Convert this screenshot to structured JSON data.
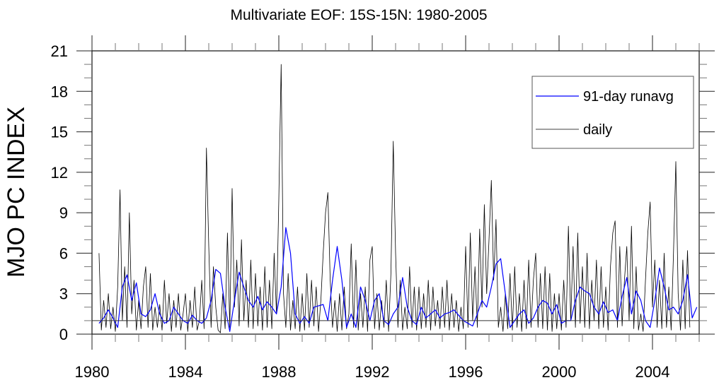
{
  "chart_data": {
    "type": "line",
    "title": "Multivariate EOF: 15S-15N: 1980-2005",
    "xlabel": "",
    "ylabel": "MJO PC INDEX",
    "xlim": [
      1980,
      2006
    ],
    "ylim": [
      0,
      21
    ],
    "xticks": [
      "1980",
      "1984",
      "1988",
      "1992",
      "1996",
      "2000",
      "2004"
    ],
    "xtick_values": [
      1980,
      1984,
      1988,
      1992,
      1996,
      2000,
      2004
    ],
    "yticks": [
      "0",
      "3",
      "6",
      "9",
      "12",
      "15",
      "18",
      "21"
    ],
    "ytick_values": [
      0,
      3,
      6,
      9,
      12,
      15,
      18,
      21
    ],
    "reference_line": 1,
    "grid": false,
    "legend_position": "top-right",
    "series": [
      {
        "name": "91-day runavg",
        "color": "#0000ff",
        "x_start": 1980.3,
        "x_step": 0.2,
        "values": [
          0.8,
          1.2,
          1.8,
          1.2,
          0.5,
          3.5,
          4.4,
          2.5,
          3.8,
          1.5,
          1.3,
          1.8,
          3.0,
          1.5,
          0.8,
          1.0,
          2.0,
          1.5,
          1.0,
          0.8,
          1.4,
          1.0,
          0.8,
          1.2,
          2.5,
          4.8,
          4.5,
          2.0,
          0.2,
          2.5,
          4.6,
          3.5,
          2.5,
          2.0,
          2.8,
          1.8,
          2.4,
          2.0,
          1.5,
          3.5,
          7.9,
          6.0,
          1.5,
          0.8,
          1.3,
          0.8,
          2.0,
          2.1,
          2.2,
          1.0,
          4.0,
          6.5,
          4.0,
          0.5,
          1.5,
          0.5,
          3.5,
          2.5,
          1.0,
          2.5,
          3.0,
          1.0,
          0.7,
          1.5,
          2.0,
          4.2,
          2.0,
          1.0,
          0.7,
          2.0,
          1.2,
          1.5,
          1.8,
          1.2,
          1.5,
          1.6,
          1.8,
          1.4,
          1.0,
          0.8,
          0.6,
          1.5,
          2.5,
          2.0,
          3.5,
          5.2,
          5.6,
          3.0,
          0.5,
          1.0,
          1.5,
          1.8,
          0.8,
          1.2,
          2.0,
          2.5,
          2.3,
          1.5,
          2.2,
          0.8,
          1.0,
          1.0,
          2.5,
          3.5,
          3.2,
          3.0,
          2.0,
          1.5,
          2.4,
          1.6,
          1.8,
          1.0,
          2.8,
          4.2,
          1.5,
          3.2,
          2.5,
          1.0,
          0.5,
          2.5,
          4.9,
          3.5,
          1.8,
          2.0,
          1.5,
          2.5,
          4.4,
          1.2,
          2.0
        ]
      },
      {
        "name": "daily",
        "color": "#000000",
        "x_start": 1980.3,
        "x_step": 0.1,
        "values": [
          6.0,
          0.3,
          2.5,
          0.5,
          3.0,
          0.4,
          2.0,
          0.2,
          3.5,
          10.7,
          1.0,
          5.0,
          0.5,
          9.0,
          1.5,
          4.0,
          0.3,
          2.5,
          0.4,
          3.5,
          5.0,
          0.5,
          4.5,
          0.3,
          2.0,
          0.5,
          2.2,
          0.3,
          4.0,
          0.8,
          3.0,
          0.2,
          2.5,
          0.5,
          3.0,
          0.3,
          1.5,
          3.0,
          0.2,
          2.5,
          0.5,
          3.5,
          0.3,
          1.0,
          4.0,
          0.4,
          13.8,
          6.5,
          0.5,
          5.0,
          2.0,
          0.3,
          0.1,
          3.0,
          0.4,
          7.5,
          0.5,
          10.8,
          2.0,
          5.5,
          0.6,
          7.0,
          1.0,
          4.0,
          0.5,
          5.5,
          0.4,
          4.5,
          0.6,
          3.5,
          0.3,
          5.0,
          0.5,
          4.0,
          0.4,
          6.0,
          1.5,
          10.0,
          20.0,
          3.0,
          0.5,
          4.5,
          0.3,
          2.5,
          0.4,
          3.5,
          0.2,
          3.0,
          0.3,
          4.5,
          0.5,
          4.0,
          0.6,
          3.5,
          0.2,
          2.5,
          6.0,
          9.0,
          10.5,
          4.0,
          0.5,
          2.5,
          0.2,
          3.0,
          0.3,
          3.5,
          0.4,
          1.5,
          6.7,
          0.5,
          5.5,
          0.3,
          3.0,
          0.5,
          3.5,
          0.2,
          5.5,
          6.5,
          0.4,
          3.0,
          0.3,
          2.5,
          0.5,
          4.0,
          0.2,
          4.5,
          14.3,
          6.0,
          0.5,
          4.0,
          0.3,
          2.0,
          0.4,
          5.0,
          0.5,
          3.5,
          0.3,
          3.5,
          0.4,
          3.0,
          0.5,
          4.0,
          0.3,
          3.5,
          0.6,
          2.5,
          0.4,
          3.5,
          0.5,
          4.0,
          0.3,
          3.0,
          0.5,
          2.5,
          0.2,
          2.0,
          0.4,
          6.5,
          0.5,
          7.5,
          1.0,
          5.0,
          0.5,
          7.8,
          2.0,
          9.6,
          3.0,
          7.0,
          11.4,
          4.0,
          8.5,
          0.5,
          2.0,
          0.2,
          3.0,
          0.4,
          4.5,
          0.3,
          5.0,
          0.5,
          3.0,
          0.2,
          4.0,
          0.4,
          5.5,
          0.5,
          4.0,
          6.0,
          0.5,
          4.5,
          0.4,
          5.0,
          0.3,
          4.5,
          0.2,
          3.0,
          0.4,
          3.0,
          0.3,
          4.0,
          0.5,
          8.0,
          1.0,
          6.5,
          0.5,
          7.5,
          0.8,
          5.0,
          0.5,
          6.0,
          0.4,
          4.0,
          1.0,
          5.5,
          0.4,
          5.0,
          0.5,
          3.5,
          0.3,
          5.0,
          7.5,
          8.4,
          0.5,
          6.5,
          0.6,
          4.0,
          6.5,
          1.0,
          8.0,
          0.4,
          5.0,
          0.3,
          1.5,
          0.2,
          4.0,
          7.5,
          9.8,
          2.0,
          5.5,
          0.5,
          4.0,
          0.4,
          6.0,
          0.5,
          3.5,
          0.3,
          6.0,
          12.8,
          3.0,
          0.3,
          5.5,
          0.4,
          6.2,
          0.5
        ]
      }
    ]
  }
}
